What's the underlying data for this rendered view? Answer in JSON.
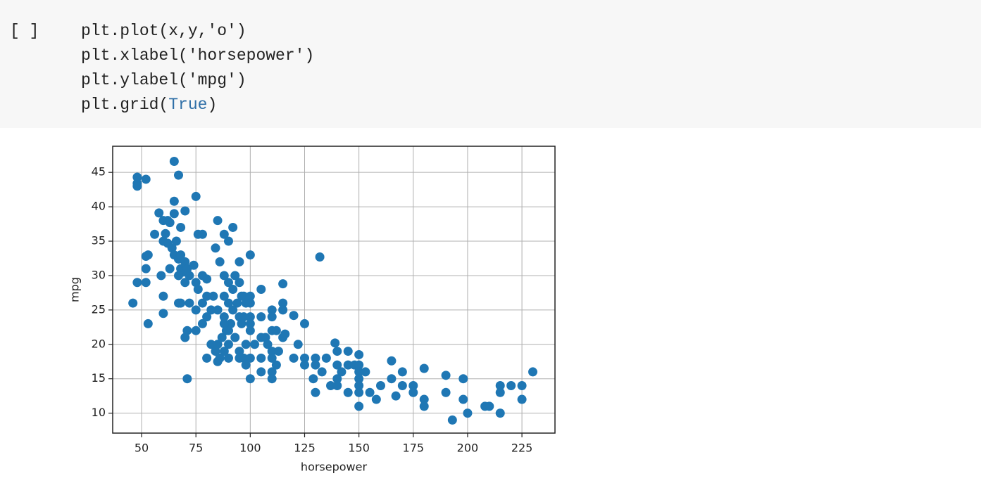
{
  "cell": {
    "prompt": "[ ]",
    "lines": [
      [
        {
          "text": "plt.plot(x,y,'o')"
        }
      ],
      [
        {
          "text": "plt.xlabel('horsepower')"
        }
      ],
      [
        {
          "text": "plt.ylabel('mpg')"
        }
      ],
      [
        {
          "text": "plt.grid("
        },
        {
          "text": "True",
          "color": "#2f6fa7"
        },
        {
          "text": ")"
        }
      ]
    ]
  },
  "chart_data": {
    "type": "scatter",
    "xlabel": "horsepower",
    "ylabel": "mpg",
    "color": "#1f77b4",
    "grid": true,
    "xlim": [
      36.7,
      240.2
    ],
    "ylim": [
      7.1,
      48.8
    ],
    "xticks": [
      50,
      75,
      100,
      125,
      150,
      175,
      200,
      225
    ],
    "yticks": [
      10,
      15,
      20,
      25,
      30,
      35,
      40,
      45
    ],
    "x": [
      46,
      48,
      48,
      48,
      52,
      48,
      52,
      52,
      52,
      53,
      53,
      58,
      60,
      62,
      63,
      65,
      65,
      65,
      67,
      68,
      70,
      75,
      76,
      78,
      61,
      60,
      62,
      64,
      65,
      67,
      68,
      69,
      70,
      71,
      72,
      74,
      75,
      76,
      78,
      78,
      80,
      80,
      82,
      83,
      84,
      85,
      86,
      88,
      88,
      88,
      90,
      90,
      90,
      90,
      92,
      92,
      94,
      95,
      95,
      96,
      97,
      98,
      100,
      100,
      100,
      100,
      100,
      100,
      105,
      105,
      105,
      105,
      105,
      107,
      110,
      110,
      110,
      110,
      110,
      110,
      110,
      112,
      115,
      115,
      115,
      115,
      116,
      120,
      120,
      122,
      125,
      125,
      125,
      129,
      130,
      130,
      130,
      132,
      133,
      135,
      137,
      139,
      140,
      140,
      140,
      140,
      142,
      145,
      145,
      145,
      148,
      150,
      150,
      150,
      150,
      150,
      150,
      150,
      153,
      155,
      158,
      160,
      165,
      165,
      167,
      170,
      170,
      175,
      175,
      180,
      180,
      180,
      190,
      190,
      193,
      198,
      198,
      200,
      208,
      210,
      215,
      215,
      215,
      220,
      225,
      225,
      230,
      63,
      66,
      67,
      68,
      70,
      72,
      75,
      78,
      80,
      82,
      84,
      85,
      86,
      87,
      88,
      89,
      90,
      90,
      91,
      93,
      95,
      95,
      97,
      98,
      98,
      70,
      71,
      71,
      80,
      68,
      60,
      60,
      56,
      59,
      67,
      75,
      85,
      88,
      92,
      96,
      100,
      102,
      108,
      112,
      113,
      85,
      88,
      93,
      95,
      97,
      100
    ],
    "y": [
      26,
      44.3,
      43.4,
      43,
      44,
      29,
      29,
      31,
      32.8,
      33,
      23,
      39.1,
      38,
      38,
      37.7,
      46.6,
      40.8,
      39,
      44.6,
      37,
      39.4,
      41.5,
      36,
      36,
      36.1,
      35,
      34.7,
      34,
      33,
      32.4,
      31,
      30.5,
      32,
      31,
      30,
      31.5,
      29,
      28,
      30,
      26,
      29.5,
      27,
      25,
      27,
      34,
      38,
      32,
      36,
      27,
      24,
      35,
      29,
      26,
      22,
      37,
      28,
      26,
      24,
      32,
      27,
      27,
      26,
      33,
      27,
      24,
      22,
      18,
      15,
      28,
      24,
      21,
      18,
      16,
      21,
      25,
      24,
      22,
      19,
      18,
      16,
      15,
      22,
      28.8,
      26,
      25,
      21,
      21.5,
      24.2,
      18,
      20,
      23,
      18,
      17,
      15,
      18,
      17,
      13,
      32.7,
      16,
      18,
      14,
      20.2,
      19,
      17,
      15,
      14,
      16,
      19,
      17,
      13,
      17,
      18.5,
      17,
      16,
      15,
      14,
      13,
      11,
      16,
      13,
      12,
      14,
      17.6,
      15,
      12.5,
      16,
      14,
      13,
      14,
      16.5,
      12,
      11,
      15.5,
      13,
      9,
      15,
      12,
      10,
      11,
      11,
      14,
      13,
      10,
      14,
      14,
      12,
      16,
      31,
      35,
      30,
      33,
      29,
      26,
      25,
      23,
      24,
      20,
      19,
      20,
      18,
      21,
      19,
      22,
      20,
      18,
      23,
      21,
      19,
      18,
      18,
      17,
      20,
      21,
      22,
      15,
      18,
      26,
      27,
      24.5,
      36,
      30,
      26,
      22,
      25,
      30,
      25,
      23,
      23,
      20,
      20,
      17,
      19,
      17.5,
      23,
      30,
      29,
      24,
      26
    ]
  }
}
